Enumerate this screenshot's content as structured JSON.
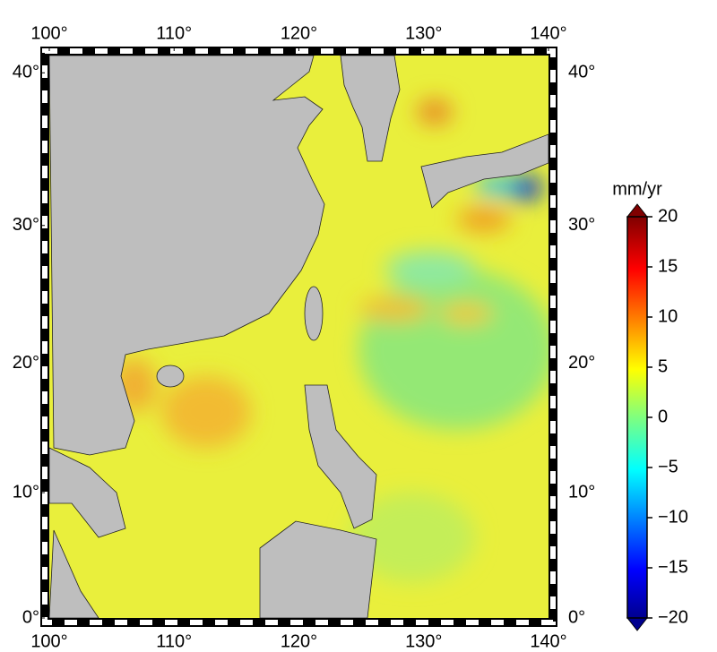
{
  "map": {
    "lon_ticks": [
      {
        "value": 100,
        "label": "100°"
      },
      {
        "value": 110,
        "label": "110°"
      },
      {
        "value": 120,
        "label": "120°"
      },
      {
        "value": 130,
        "label": "130°"
      },
      {
        "value": 140,
        "label": "140°"
      }
    ],
    "lat_ticks": [
      {
        "value": 0,
        "label": "0°"
      },
      {
        "value": 10,
        "label": "10°"
      },
      {
        "value": 20,
        "label": "20°"
      },
      {
        "value": 30,
        "label": "30°"
      },
      {
        "value": 40,
        "label": "40°"
      }
    ],
    "colorbar": {
      "unit": "mm/yr",
      "clim": [
        -20,
        20
      ],
      "ticks": [
        20,
        15,
        10,
        5,
        0,
        {
          "value": -5,
          "label": "−5"
        },
        {
          "value": -10,
          "label": "−10"
        },
        {
          "value": -15,
          "label": "−15"
        },
        {
          "value": -20,
          "label": "−20"
        }
      ]
    }
  }
}
